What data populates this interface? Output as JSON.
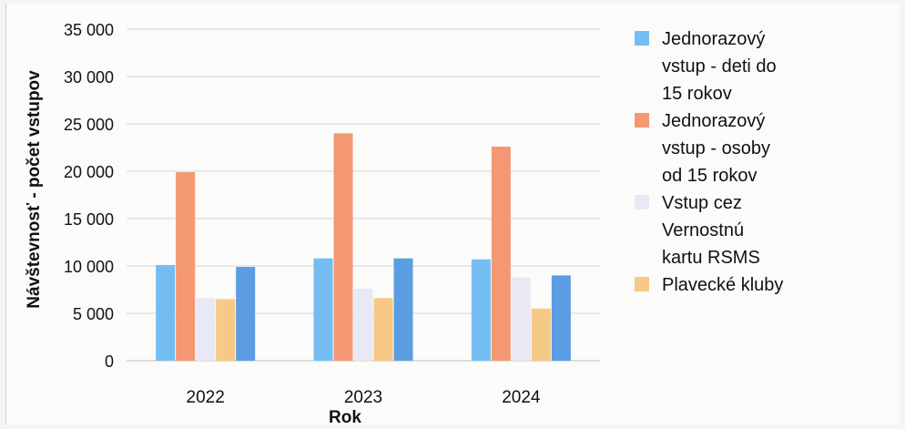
{
  "chart_data": {
    "type": "bar",
    "title": "",
    "xlabel": "Rok",
    "ylabel": "Návštevnosť - počet vstupov",
    "ylim": [
      0,
      35000
    ],
    "y_ticks": [
      "0",
      "5 000",
      "10 000",
      "15 000",
      "20 000",
      "25 000",
      "30 000",
      "35 000"
    ],
    "y_tick_values": [
      0,
      5000,
      10000,
      15000,
      20000,
      25000,
      30000,
      35000
    ],
    "categories": [
      "2022",
      "2023",
      "2024"
    ],
    "grid": true,
    "legend_position": "right",
    "series": [
      {
        "name": "Jednorazový vstup - deti do 15 rokov",
        "color": "#74bdf3",
        "values": [
          10100,
          10800,
          10700
        ]
      },
      {
        "name": "Jednorazový vstup - osoby od 15 rokov",
        "color": "#f39872",
        "values": [
          19900,
          24000,
          22600
        ]
      },
      {
        "name": "Vstup cez Vernostnú kartu RSMS",
        "color": "#e9e9f5",
        "values": [
          6600,
          7600,
          8800
        ]
      },
      {
        "name": "Plavecké kluby",
        "color": "#f7c987",
        "values": [
          6500,
          6600,
          5500
        ]
      },
      {
        "name": "",
        "color": "#5b9de3",
        "values": [
          9900,
          10800,
          9000
        ]
      }
    ],
    "legend_lines": [
      [
        "Jednorazový",
        "vstup - deti do",
        "15 rokov"
      ],
      [
        "Jednorazový",
        "vstup - osoby",
        "od 15 rokov"
      ],
      [
        "Vstup cez",
        "Vernostnú",
        "kartu RSMS"
      ],
      [
        "Plavecké kluby"
      ]
    ]
  }
}
